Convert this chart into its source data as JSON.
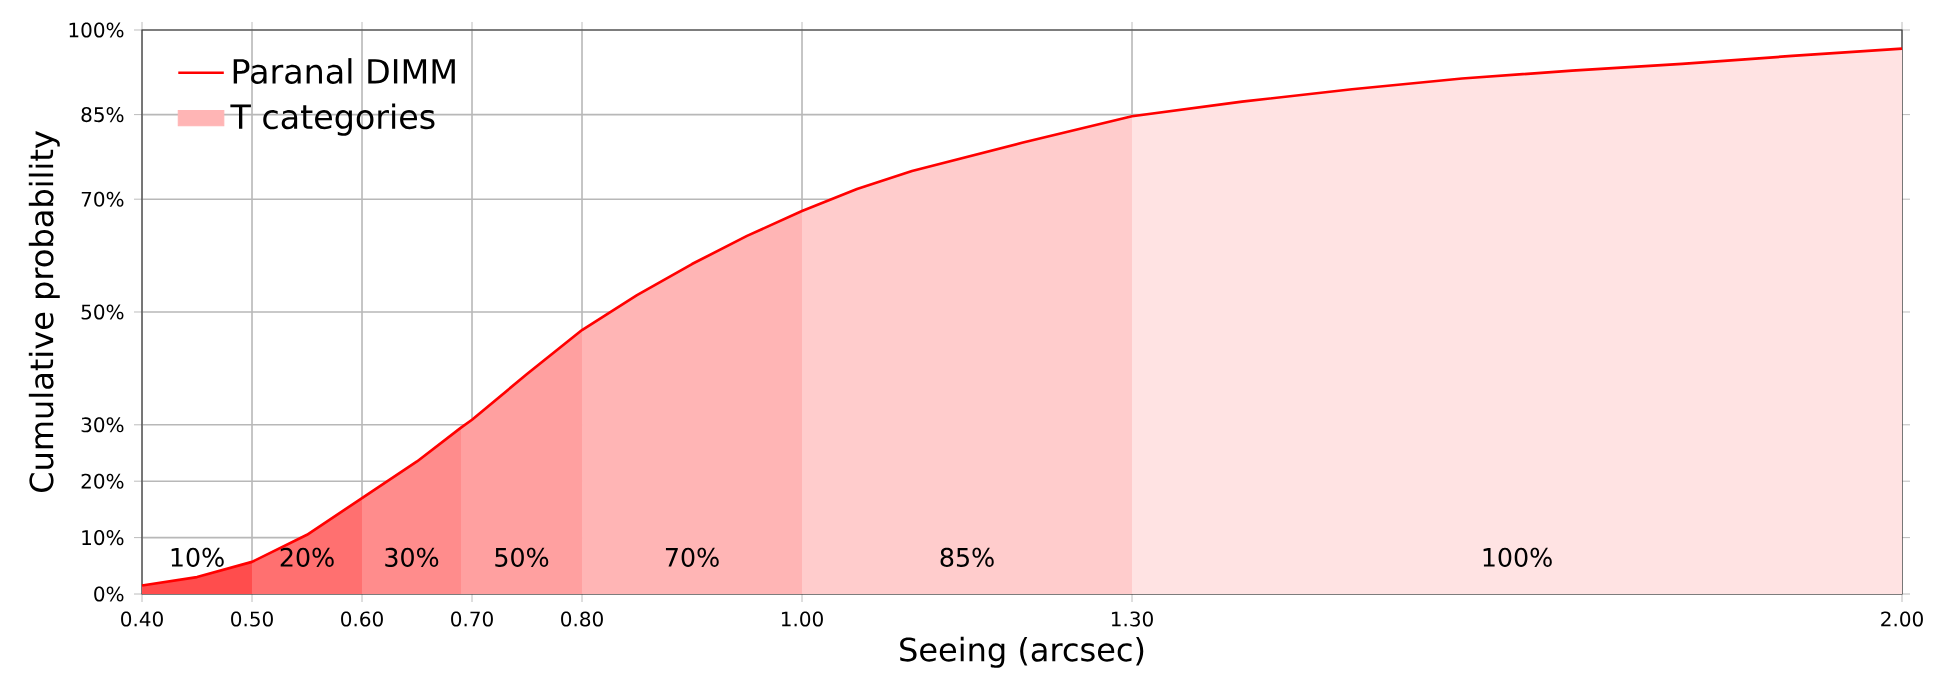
{
  "chart_data": {
    "type": "line",
    "xlabel": "Seeing (arcsec)",
    "ylabel": "Cumulative probability",
    "x": [
      0.4,
      0.45,
      0.5,
      0.55,
      0.6,
      0.65,
      0.69,
      0.7,
      0.75,
      0.8,
      0.85,
      0.9,
      0.95,
      1.0,
      1.05,
      1.1,
      1.2,
      1.3,
      1.4,
      1.5,
      1.6,
      1.7,
      1.8,
      1.9,
      2.0
    ],
    "series": [
      {
        "name": "Paranal DIMM",
        "color": "#ff0000",
        "values": [
          1.5,
          3,
          5.7,
          10.5,
          17,
          23.5,
          29.5,
          30.9,
          39,
          46.8,
          53,
          58.5,
          63.5,
          67.9,
          71.8,
          75,
          80,
          84.7,
          87.3,
          89.5,
          91.4,
          92.8,
          94,
          95.4,
          96.7
        ]
      },
      {
        "type": "area",
        "color": "#ff4d4d",
        "x": [
          0.4,
          0.45,
          0.5
        ],
        "values": [
          1.5,
          3,
          5.7
        ]
      },
      {
        "type": "area",
        "color": "#ff7070",
        "x": [
          0.5,
          0.55,
          0.6
        ],
        "values": [
          5.7,
          10.5,
          17
        ]
      },
      {
        "type": "area",
        "color": "#ff8c8c",
        "x": [
          0.6,
          0.65,
          0.69
        ],
        "values": [
          17,
          23.5,
          29.5
        ]
      },
      {
        "type": "area",
        "color": "#ffa0a0",
        "x": [
          0.69,
          0.7,
          0.75,
          0.8
        ],
        "values": [
          29.5,
          30.9,
          39,
          46.8
        ]
      },
      {
        "name": "T categories",
        "type": "area",
        "color": "#ffb5b5",
        "x": [
          0.8,
          0.85,
          0.9,
          0.95,
          1.0
        ],
        "values": [
          46.8,
          53,
          58.5,
          63.5,
          67.9
        ]
      },
      {
        "type": "area",
        "color": "#ffcccc",
        "x": [
          1.0,
          1.05,
          1.1,
          1.2,
          1.3
        ],
        "values": [
          67.9,
          71.8,
          75,
          80,
          84.7
        ]
      },
      {
        "type": "area",
        "color": "#ffe3e3",
        "x": [
          1.3,
          1.4,
          1.5,
          1.6,
          1.7,
          1.8,
          1.9,
          2.0
        ],
        "values": [
          84.7,
          87.3,
          89.5,
          91.4,
          92.8,
          94,
          95.4,
          96.7
        ]
      }
    ],
    "annotations": [
      "10%",
      "20%",
      "30%",
      "50%",
      "70%",
      "85%",
      "100%"
    ],
    "xlim": [
      0.4,
      2.0
    ],
    "xticks": [
      {
        "value": 0.4,
        "label": "0.40"
      },
      {
        "value": 0.5,
        "label": "0.50"
      },
      {
        "value": 0.6,
        "label": "0.60"
      },
      {
        "value": 0.7,
        "label": "0.70"
      },
      {
        "value": 0.8,
        "label": "0.80"
      },
      {
        "value": 1.0,
        "label": "1.00"
      },
      {
        "value": 1.3,
        "label": "1.30"
      },
      {
        "value": 2.0,
        "label": "2.00"
      }
    ],
    "ylim": [
      0,
      100
    ],
    "yticks": [
      {
        "value": 0,
        "label": "0%"
      },
      {
        "value": 10,
        "label": "10%"
      },
      {
        "value": 20,
        "label": "20%"
      },
      {
        "value": 30,
        "label": "30%"
      },
      {
        "value": 50,
        "label": "50%"
      },
      {
        "value": 70,
        "label": "70%"
      },
      {
        "value": 85,
        "label": "85%"
      },
      {
        "value": 100,
        "label": "100%"
      }
    ],
    "grid": true,
    "legend": "top left",
    "marker": "none",
    "line_style": "solid"
  }
}
